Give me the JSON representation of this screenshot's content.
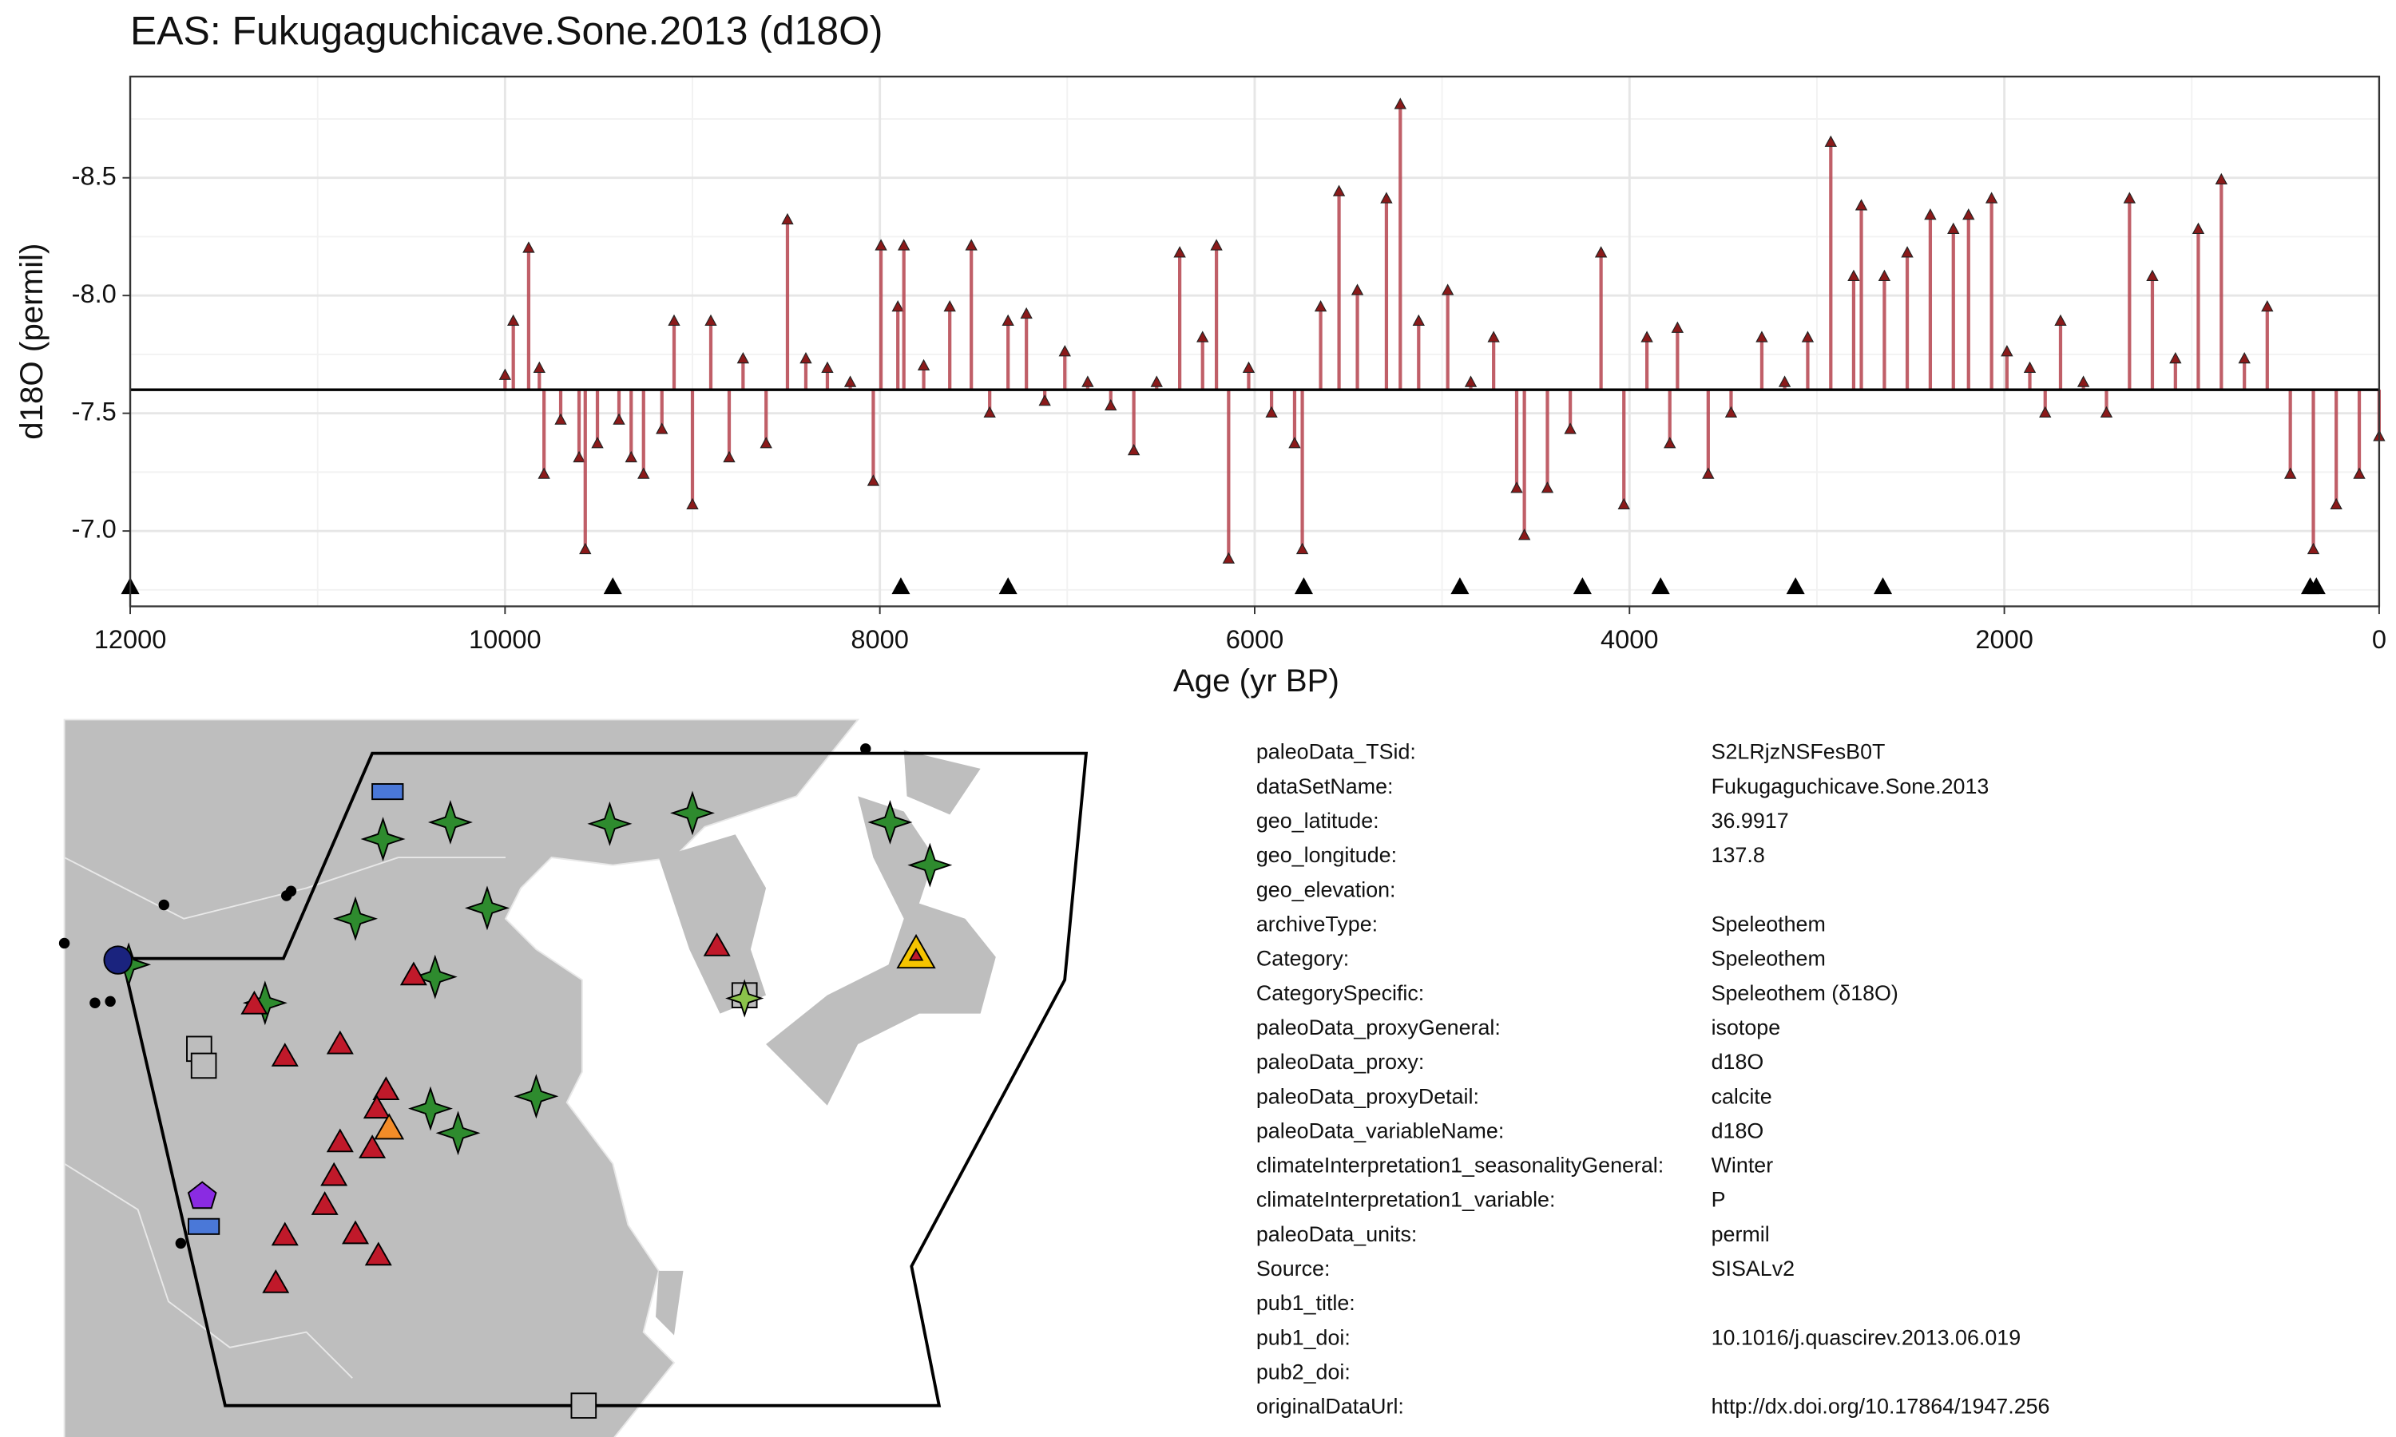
{
  "chart_data": {
    "type": "lollipop",
    "title": "EAS: Fukugaguchicave.Sone.2013 (d18O)",
    "xlabel": "Age (yr BP)",
    "ylabel": "d18O (permil)",
    "xlim": [
      12000,
      0
    ],
    "xticks": [
      12000,
      10000,
      8000,
      6000,
      4000,
      2000,
      0
    ],
    "xminorticks": [
      11000,
      9000,
      7000,
      5000,
      3000,
      1000
    ],
    "ylim": [
      -6.68,
      -8.93
    ],
    "yticks": [
      -8.5,
      {
        "value": -8,
        "label": "-8.0"
      },
      -7.5,
      {
        "value": -7,
        "label": "-7.0"
      }
    ],
    "yminorticks": [
      -8.75,
      -8.25,
      -7.75,
      -7.25,
      -6.75
    ],
    "grid": true,
    "reference_line": -7.6,
    "series": [
      {
        "color": "#b5434d",
        "marker_color": "#8b1a1a",
        "x": [
          10000,
          9956,
          9874,
          9817,
          9792,
          9703,
          9605,
          9572,
          9507,
          9392,
          9327,
          9261,
          9163,
          9098,
          9000,
          8902,
          8804,
          8730,
          8607,
          8493,
          8395,
          8280,
          8158,
          8035,
          7994,
          7904,
          7872,
          7766,
          7627,
          7512,
          7414,
          7316,
          7218,
          7120,
          7013,
          6891,
          6768,
          6645,
          6523,
          6400,
          6278,
          6204,
          6139,
          6032,
          5910,
          5787,
          5746,
          5648,
          5550,
          5452,
          5297,
          5223,
          5125,
          4970,
          4847,
          4725,
          4602,
          4561,
          4438,
          4316,
          4152,
          4030,
          3907,
          3785,
          3744,
          3580,
          3458,
          3294,
          3172,
          3049,
          2926,
          2804,
          2763,
          2640,
          2518,
          2395,
          2272,
          2191,
          2068,
          1986,
          1864,
          1782,
          1700,
          1578,
          1455,
          1332,
          1210,
          1087,
          965,
          842,
          719,
          597,
          474,
          351,
          229,
          106,
          0
        ],
        "values": [
          -7.66,
          -7.89,
          -8.2,
          -7.69,
          -7.24,
          -7.47,
          -7.31,
          -6.92,
          -7.37,
          -7.47,
          -7.31,
          -7.24,
          -7.43,
          -7.89,
          -7.11,
          -7.89,
          -7.31,
          -7.73,
          -7.37,
          -8.32,
          -7.73,
          -7.69,
          -7.63,
          -7.21,
          -8.21,
          -7.95,
          -8.21,
          -7.7,
          -7.95,
          -8.21,
          -7.5,
          -7.89,
          -7.92,
          -7.55,
          -7.76,
          -7.63,
          -7.53,
          -7.34,
          -7.63,
          -8.18,
          -7.82,
          -8.21,
          -6.88,
          -7.69,
          -7.5,
          -7.37,
          -6.92,
          -7.95,
          -8.44,
          -8.02,
          -8.41,
          -8.81,
          -7.89,
          -8.02,
          -7.63,
          -7.82,
          -7.18,
          -6.98,
          -7.18,
          -7.43,
          -8.18,
          -7.11,
          -7.82,
          -7.37,
          -7.86,
          -7.24,
          -7.5,
          -7.82,
          -7.63,
          -7.82,
          -8.65,
          -8.08,
          -8.38,
          -8.08,
          -8.18,
          -8.34,
          -8.28,
          -8.34,
          -8.41,
          -7.76,
          -7.69,
          -7.5,
          -7.89,
          -7.63,
          -7.5,
          -8.41,
          -8.08,
          -7.73,
          -8.28,
          -8.49,
          -7.73,
          -7.95,
          -7.24,
          -6.92,
          -7.11,
          -7.24,
          -7.4
        ]
      }
    ],
    "chron_ages": [
      12000,
      9425,
      7888,
      7316,
      5738,
      4905,
      4251,
      3834,
      3114,
      2648,
      368,
      335
    ]
  },
  "table": {
    "rows": [
      [
        "paleoData_TSid:",
        "S2LRjzNSFesB0T"
      ],
      [
        "dataSetName:",
        "Fukugaguchicave.Sone.2013"
      ],
      [
        "geo_latitude:",
        "36.9917"
      ],
      [
        "geo_longitude:",
        "137.8"
      ],
      [
        "geo_elevation:"
      ],
      [
        "archiveType:",
        "Speleothem"
      ],
      [
        "Category:",
        "Speleothem"
      ],
      [
        "CategorySpecific:",
        "Speleothem (δ18O)"
      ],
      [
        "paleoData_proxyGeneral:",
        "isotope"
      ],
      [
        "paleoData_proxy:",
        "d18O"
      ],
      [
        "paleoData_proxyDetail:",
        "calcite"
      ],
      [
        "paleoData_variableName:",
        "d18O"
      ],
      [
        "climateInterpretation1_seasonalityGeneral:",
        "Winter"
      ],
      [
        "climateInterpretation1_variable:",
        "P"
      ],
      [
        "paleoData_units:",
        "permil"
      ],
      [
        "Source:",
        "SISALv2"
      ],
      [
        "pub1_title:"
      ],
      [
        "pub1_doi:",
        "10.1016/j.quascirev.2013.06.019"
      ],
      [
        "pub2_doi:"
      ],
      [
        "originalDataUrl:",
        "http://dx.doi.org/10.17864/1947.256"
      ]
    ]
  }
}
